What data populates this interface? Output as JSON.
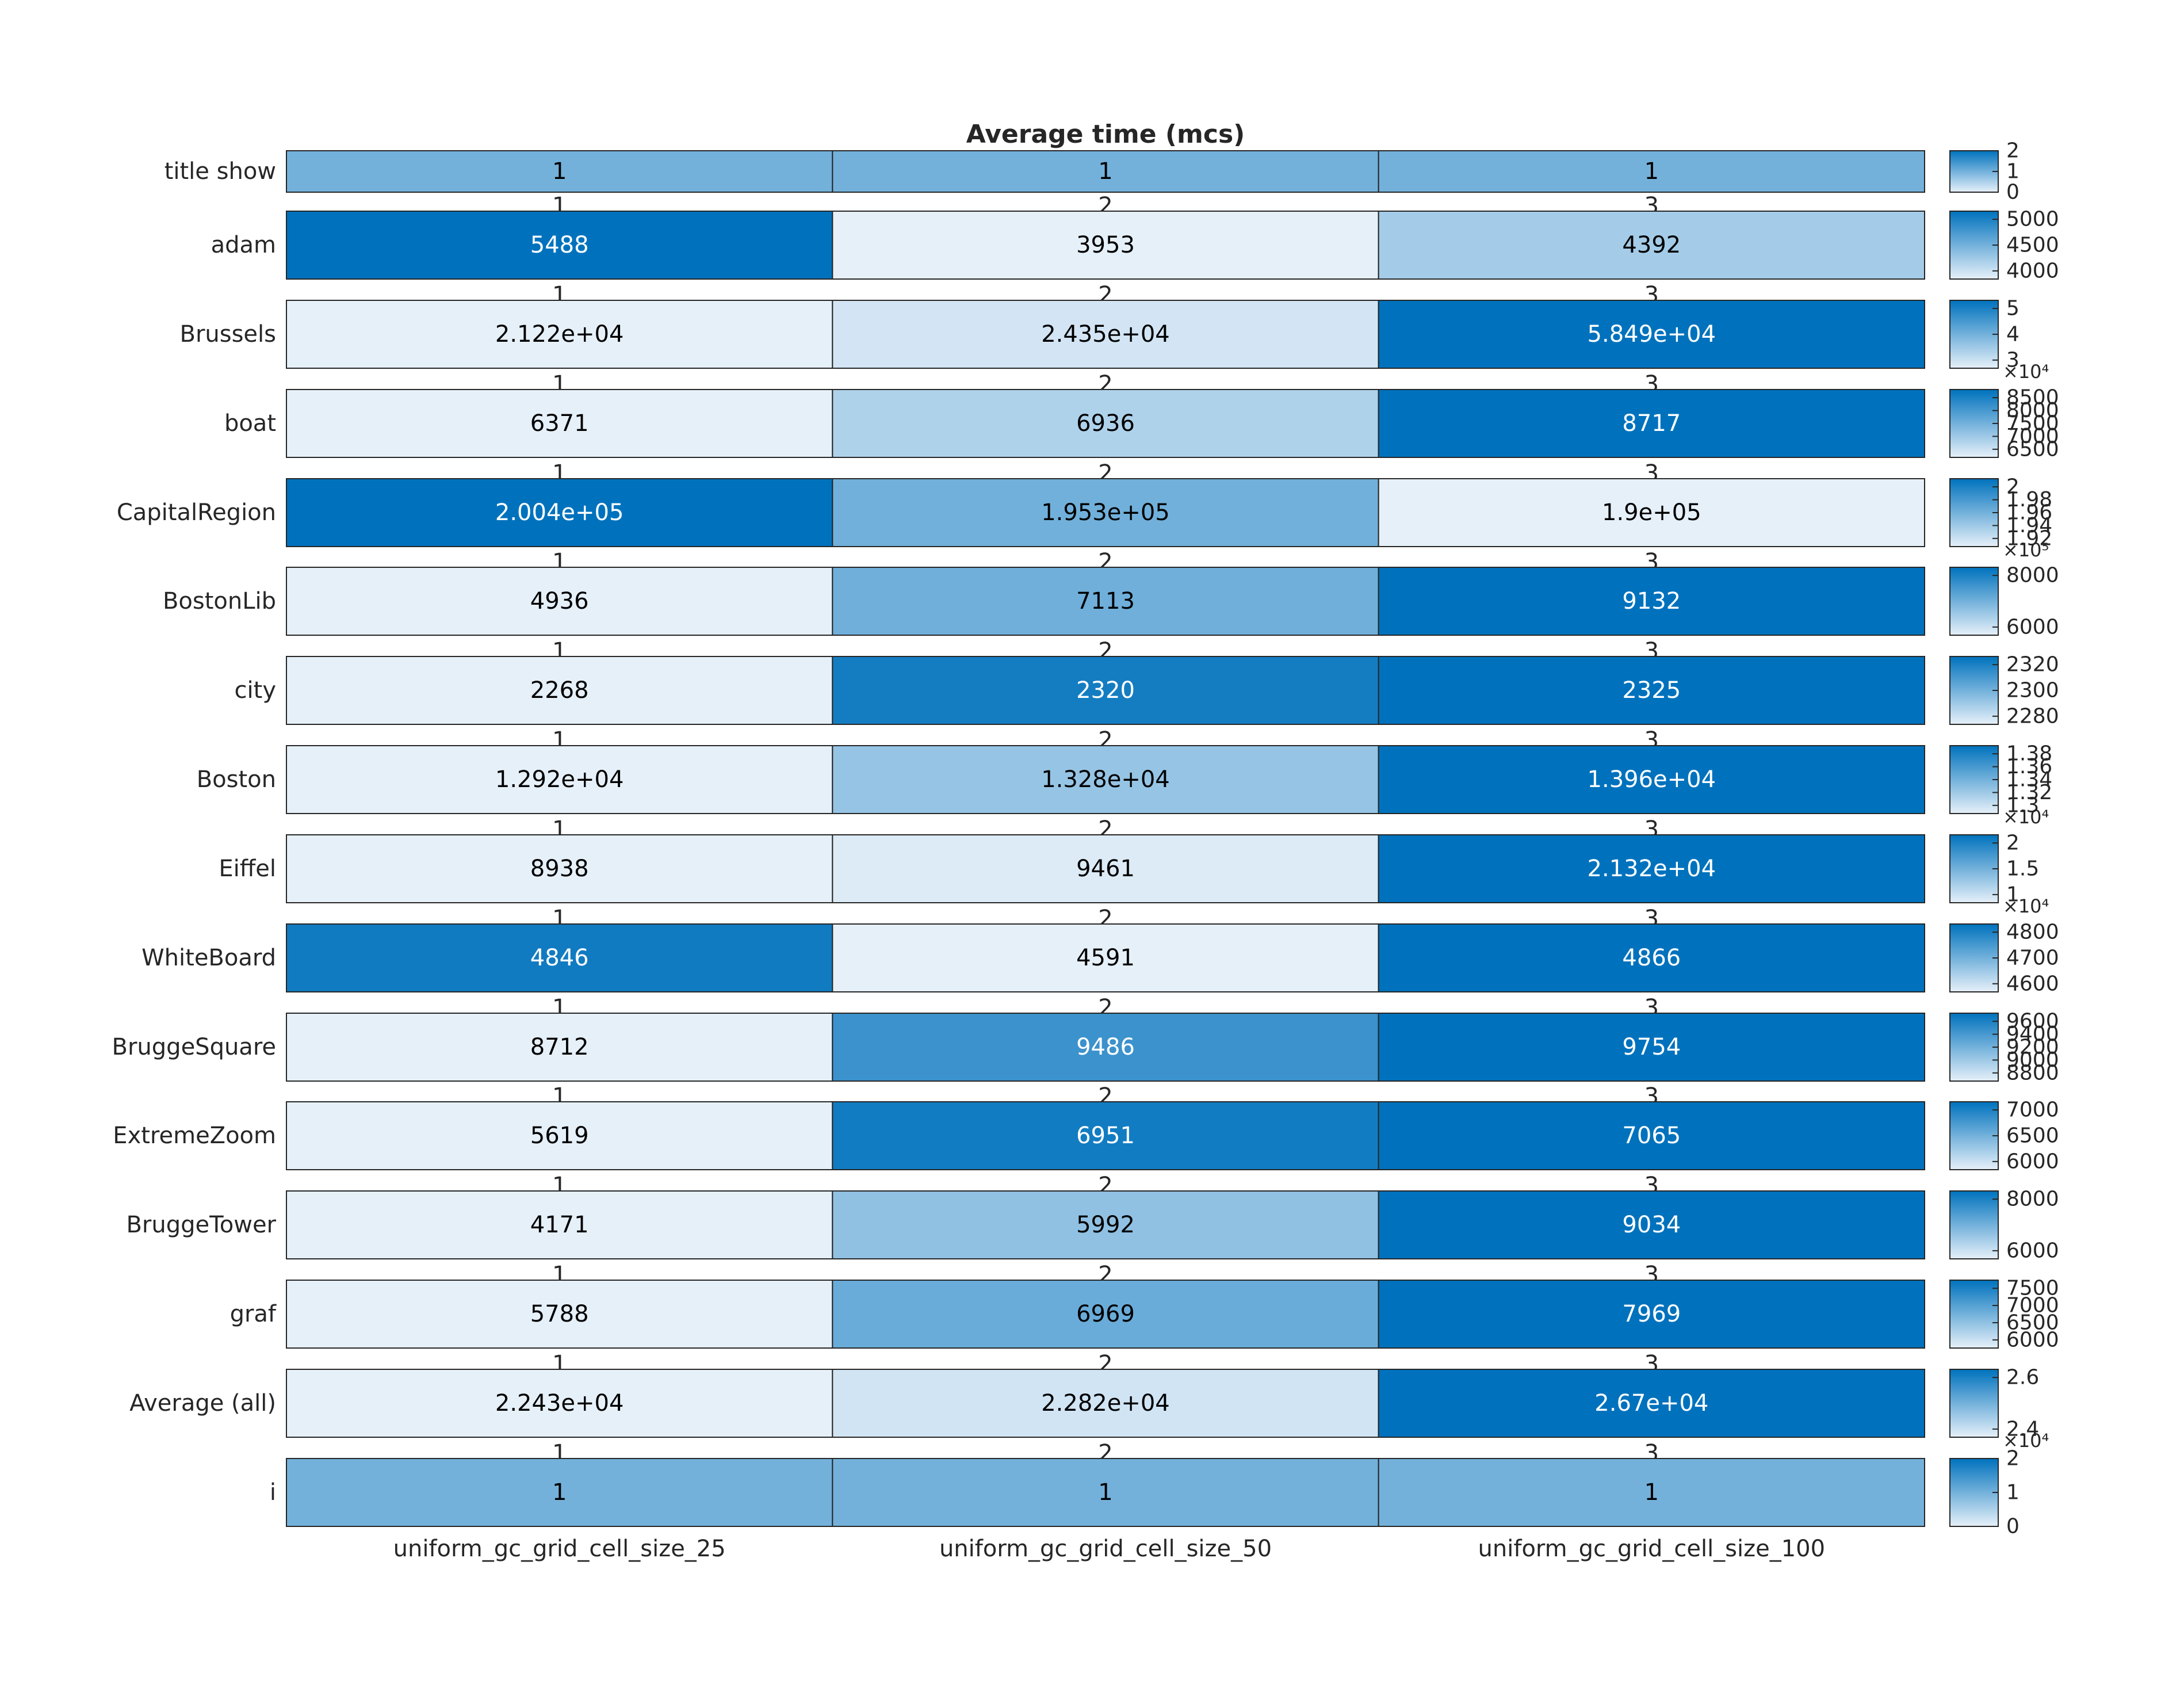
{
  "chart_data": {
    "type": "heatmap",
    "title": "Average time (mcs)",
    "columns": [
      "uniform_gc_grid_cell_size_25",
      "uniform_gc_grid_cell_size_50",
      "uniform_gc_grid_cell_size_100"
    ],
    "colormap": {
      "low": "#e6f0f9",
      "high": "#0072bd"
    },
    "rows": [
      {
        "label": "title show",
        "cells": [
          {
            "value": 1,
            "text": "1"
          },
          {
            "value": 1,
            "text": "1"
          },
          {
            "value": 1,
            "text": "1"
          }
        ],
        "clim": [
          0,
          2
        ],
        "cticks": [
          "2",
          "1",
          "0"
        ],
        "cexp": "",
        "top_labels": []
      },
      {
        "label": "adam",
        "cells": [
          {
            "value": 5488,
            "text": "5488"
          },
          {
            "value": 3953,
            "text": "3953"
          },
          {
            "value": 4392,
            "text": "4392"
          }
        ],
        "clim": [
          3953,
          5488
        ],
        "cticks": [
          "5000",
          "4500",
          "4000"
        ],
        "cexp": "",
        "top_labels": [
          "1",
          "2",
          "3"
        ]
      },
      {
        "label": "Brussels",
        "cells": [
          {
            "value": 21220,
            "text": "2.122e+04"
          },
          {
            "value": 24350,
            "text": "2.435e+04"
          },
          {
            "value": 58490,
            "text": "5.849e+04"
          }
        ],
        "clim": [
          21220,
          58490
        ],
        "cticks": [
          "5",
          "4",
          "3"
        ],
        "cexp": "×10⁴",
        "top_labels": [
          "1",
          "2",
          "3"
        ]
      },
      {
        "label": "boat",
        "cells": [
          {
            "value": 6371,
            "text": "6371"
          },
          {
            "value": 6936,
            "text": "6936"
          },
          {
            "value": 8717,
            "text": "8717"
          }
        ],
        "clim": [
          6371,
          8717
        ],
        "cticks": [
          "8500",
          "8000",
          "7500",
          "7000",
          "6500"
        ],
        "cexp": "",
        "top_labels": [
          "1",
          "2",
          "3"
        ]
      },
      {
        "label": "CapitalRegion",
        "cells": [
          {
            "value": 200400,
            "text": "2.004e+05"
          },
          {
            "value": 195300,
            "text": "1.953e+05"
          },
          {
            "value": 190000,
            "text": "1.9e+05"
          }
        ],
        "clim": [
          190000,
          200400
        ],
        "cticks": [
          "2",
          "1.98",
          "1.96",
          "1.94",
          "1.92"
        ],
        "cexp": "×10⁵",
        "top_labels": [
          "1",
          "2",
          "3"
        ]
      },
      {
        "label": "BostonLib",
        "cells": [
          {
            "value": 4936,
            "text": "4936"
          },
          {
            "value": 7113,
            "text": "7113"
          },
          {
            "value": 9132,
            "text": "9132"
          }
        ],
        "clim": [
          4936,
          9132
        ],
        "cticks": [
          "8000",
          "6000"
        ],
        "cexp": "",
        "top_labels": [
          "1",
          "2",
          "3"
        ]
      },
      {
        "label": "city",
        "cells": [
          {
            "value": 2268,
            "text": "2268"
          },
          {
            "value": 2320,
            "text": "2320"
          },
          {
            "value": 2325,
            "text": "2325"
          }
        ],
        "clim": [
          2268,
          2325
        ],
        "cticks": [
          "2320",
          "2300",
          "2280"
        ],
        "cexp": "",
        "top_labels": [
          "1",
          "2",
          "3"
        ]
      },
      {
        "label": "Boston",
        "cells": [
          {
            "value": 12920,
            "text": "1.292e+04"
          },
          {
            "value": 13280,
            "text": "1.328e+04"
          },
          {
            "value": 13960,
            "text": "1.396e+04"
          }
        ],
        "clim": [
          12920,
          13960
        ],
        "cticks": [
          "1.38",
          "1.36",
          "1.34",
          "1.32",
          "1.3"
        ],
        "cexp": "×10⁴",
        "top_labels": [
          "1",
          "2",
          "3"
        ]
      },
      {
        "label": "Eiffel",
        "cells": [
          {
            "value": 8938,
            "text": "8938"
          },
          {
            "value": 9461,
            "text": "9461"
          },
          {
            "value": 21320,
            "text": "2.132e+04"
          }
        ],
        "clim": [
          8938,
          21320
        ],
        "cticks": [
          "2",
          "1.5",
          "1"
        ],
        "cexp": "×10⁴",
        "top_labels": [
          "1",
          "2",
          "3"
        ]
      },
      {
        "label": "WhiteBoard",
        "cells": [
          {
            "value": 4846,
            "text": "4846"
          },
          {
            "value": 4591,
            "text": "4591"
          },
          {
            "value": 4866,
            "text": "4866"
          }
        ],
        "clim": [
          4591,
          4866
        ],
        "cticks": [
          "4800",
          "4700",
          "4600"
        ],
        "cexp": "",
        "top_labels": [
          "1",
          "2",
          "3"
        ]
      },
      {
        "label": "BruggeSquare",
        "cells": [
          {
            "value": 8712,
            "text": "8712"
          },
          {
            "value": 9486,
            "text": "9486"
          },
          {
            "value": 9754,
            "text": "9754"
          }
        ],
        "clim": [
          8712,
          9754
        ],
        "cticks": [
          "9600",
          "9400",
          "9200",
          "9000",
          "8800"
        ],
        "cexp": "",
        "top_labels": [
          "1",
          "2",
          "3"
        ]
      },
      {
        "label": "ExtremeZoom",
        "cells": [
          {
            "value": 5619,
            "text": "5619"
          },
          {
            "value": 6951,
            "text": "6951"
          },
          {
            "value": 7065,
            "text": "7065"
          }
        ],
        "clim": [
          5619,
          7065
        ],
        "cticks": [
          "7000",
          "6500",
          "6000"
        ],
        "cexp": "",
        "top_labels": [
          "1",
          "2",
          "3"
        ]
      },
      {
        "label": "BruggeTower",
        "cells": [
          {
            "value": 4171,
            "text": "4171"
          },
          {
            "value": 5992,
            "text": "5992"
          },
          {
            "value": 9034,
            "text": "9034"
          }
        ],
        "clim": [
          4171,
          9034
        ],
        "cticks": [
          "8000",
          "6000"
        ],
        "cexp": "",
        "top_labels": [
          "1",
          "2",
          "3"
        ]
      },
      {
        "label": "graf",
        "cells": [
          {
            "value": 5788,
            "text": "5788"
          },
          {
            "value": 6969,
            "text": "6969"
          },
          {
            "value": 7969,
            "text": "7969"
          }
        ],
        "clim": [
          5788,
          7969
        ],
        "cticks": [
          "7500",
          "7000",
          "6500",
          "6000"
        ],
        "cexp": "",
        "top_labels": [
          "1",
          "2",
          "3"
        ]
      },
      {
        "label": "Average (all)",
        "cells": [
          {
            "value": 22430,
            "text": "2.243e+04"
          },
          {
            "value": 22820,
            "text": "2.282e+04"
          },
          {
            "value": 26700,
            "text": "2.67e+04"
          }
        ],
        "clim": [
          22430,
          26700
        ],
        "cticks": [
          "2.6",
          "2.4"
        ],
        "cexp": "×10⁴",
        "top_labels": [
          "1",
          "2",
          "3"
        ]
      },
      {
        "label": "i",
        "cells": [
          {
            "value": 1,
            "text": "1"
          },
          {
            "value": 1,
            "text": "1"
          },
          {
            "value": 1,
            "text": "1"
          }
        ],
        "clim": [
          0,
          2
        ],
        "cticks": [
          "2",
          "1",
          "0"
        ],
        "cexp": "",
        "top_labels": [
          "1",
          "2",
          "3"
        ]
      }
    ]
  }
}
